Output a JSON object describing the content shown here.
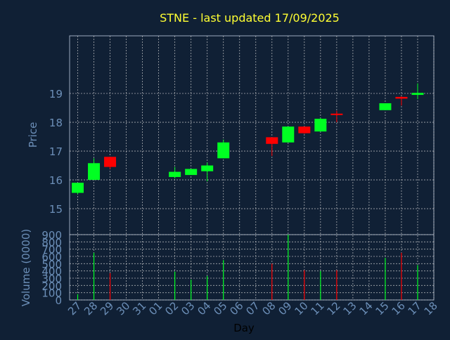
{
  "title": "STNE - last updated 17/09/2025",
  "colors": {
    "background": "#102035",
    "title": "#ffff33",
    "axis_text": "#6c8fb8",
    "frame": "#9aa7bd",
    "grid": "#d0d0d0",
    "up": "#00ff22",
    "down": "#ff0000"
  },
  "chart_data": [
    {
      "type": "candlestick",
      "ylabel": "Price",
      "ylim": [
        14.1,
        21.0
      ],
      "yticks": [
        "15",
        "16",
        "17",
        "18",
        "19"
      ],
      "ytick_values": [
        15,
        16,
        17,
        18,
        19
      ],
      "grid": true,
      "x": [
        "27",
        "28",
        "29",
        "30",
        "31",
        "01",
        "02",
        "03",
        "04",
        "05",
        "06",
        "07",
        "08",
        "09",
        "10",
        "11",
        "12",
        "13",
        "14",
        "15",
        "16",
        "17",
        "18"
      ],
      "candles": [
        {
          "x": "27",
          "open": 15.55,
          "high": 15.9,
          "low": 15.5,
          "close": 15.9
        },
        {
          "x": "28",
          "open": 16.0,
          "high": 16.75,
          "low": 16.0,
          "close": 16.58
        },
        {
          "x": "29",
          "open": 16.8,
          "high": 16.8,
          "low": 16.38,
          "close": 16.45
        },
        {
          "x": "02",
          "open": 16.1,
          "high": 16.45,
          "low": 16.05,
          "close": 16.28
        },
        {
          "x": "03",
          "open": 16.17,
          "high": 16.38,
          "low": 16.17,
          "close": 16.38
        },
        {
          "x": "04",
          "open": 16.3,
          "high": 16.6,
          "low": 15.95,
          "close": 16.5
        },
        {
          "x": "05",
          "open": 16.75,
          "high": 17.4,
          "low": 16.75,
          "close": 17.3
        },
        {
          "x": "08",
          "open": 17.48,
          "high": 17.48,
          "low": 16.83,
          "close": 17.25
        },
        {
          "x": "09",
          "open": 17.3,
          "high": 17.85,
          "low": 17.3,
          "close": 17.85
        },
        {
          "x": "10",
          "open": 17.85,
          "high": 17.85,
          "low": 17.6,
          "close": 17.62
        },
        {
          "x": "11",
          "open": 17.68,
          "high": 18.15,
          "low": 17.68,
          "close": 18.12
        },
        {
          "x": "12",
          "open": 18.3,
          "high": 18.4,
          "low": 18.0,
          "close": 18.25
        },
        {
          "x": "15",
          "open": 18.42,
          "high": 18.66,
          "low": 18.42,
          "close": 18.66
        },
        {
          "x": "16",
          "open": 18.88,
          "high": 18.9,
          "low": 18.58,
          "close": 18.82
        },
        {
          "x": "17",
          "open": 18.95,
          "high": 19.35,
          "low": 18.8,
          "close": 19.02
        }
      ]
    },
    {
      "type": "bar",
      "ylabel": "Volume (0000)",
      "xlabel": "Day",
      "ylim": [
        0,
        900
      ],
      "yticks": [
        "0",
        "100",
        "200",
        "300",
        "400",
        "500",
        "600",
        "700",
        "800",
        "900"
      ],
      "ytick_values": [
        0,
        100,
        200,
        300,
        400,
        500,
        600,
        700,
        800,
        900
      ],
      "grid": true,
      "categories": [
        "27",
        "28",
        "29",
        "30",
        "31",
        "01",
        "02",
        "03",
        "04",
        "05",
        "06",
        "07",
        "08",
        "09",
        "10",
        "11",
        "12",
        "13",
        "14",
        "15",
        "16",
        "17",
        "18"
      ],
      "bars": [
        {
          "x": "27",
          "value": 80,
          "direction": "up"
        },
        {
          "x": "28",
          "value": 650,
          "direction": "up"
        },
        {
          "x": "29",
          "value": 370,
          "direction": "down"
        },
        {
          "x": "02",
          "value": 390,
          "direction": "up"
        },
        {
          "x": "03",
          "value": 280,
          "direction": "up"
        },
        {
          "x": "04",
          "value": 330,
          "direction": "up"
        },
        {
          "x": "05",
          "value": 550,
          "direction": "up"
        },
        {
          "x": "08",
          "value": 500,
          "direction": "down"
        },
        {
          "x": "09",
          "value": 900,
          "direction": "up"
        },
        {
          "x": "10",
          "value": 410,
          "direction": "down"
        },
        {
          "x": "11",
          "value": 400,
          "direction": "up"
        },
        {
          "x": "12",
          "value": 410,
          "direction": "down"
        },
        {
          "x": "15",
          "value": 580,
          "direction": "up"
        },
        {
          "x": "16",
          "value": 650,
          "direction": "down"
        },
        {
          "x": "17",
          "value": 480,
          "direction": "up"
        }
      ]
    }
  ]
}
